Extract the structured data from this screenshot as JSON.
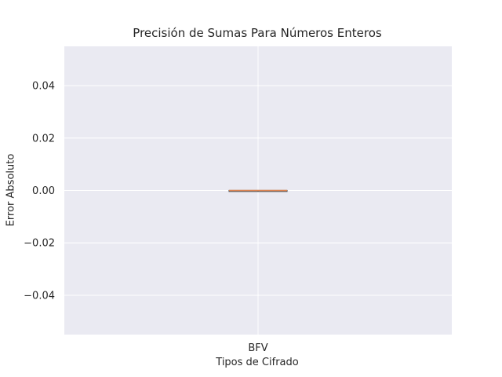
{
  "chart_data": {
    "type": "box",
    "title": "Precisión de Sumas Para Números Enteros",
    "xlabel": "Tipos de Cifrado",
    "ylabel": "Error Absoluto",
    "categories": [
      "BFV"
    ],
    "boxes": [
      {
        "category": "BFV",
        "min": 0.0,
        "q1": 0.0,
        "median": 0.0,
        "q3": 0.0,
        "max": 0.0
      }
    ],
    "ylim": [
      -0.055,
      0.055
    ],
    "yticks": [
      0.04,
      0.02,
      0.0,
      -0.02,
      -0.04
    ],
    "ytick_labels": [
      "0.04",
      "0.02",
      "0.00",
      "−0.02",
      "−0.04"
    ],
    "grid": true,
    "colors": {
      "plot_background": "#eaeaf2",
      "grid": "#ffffff",
      "median": "#dd8452",
      "box_edge": "#3f3f3f"
    }
  }
}
